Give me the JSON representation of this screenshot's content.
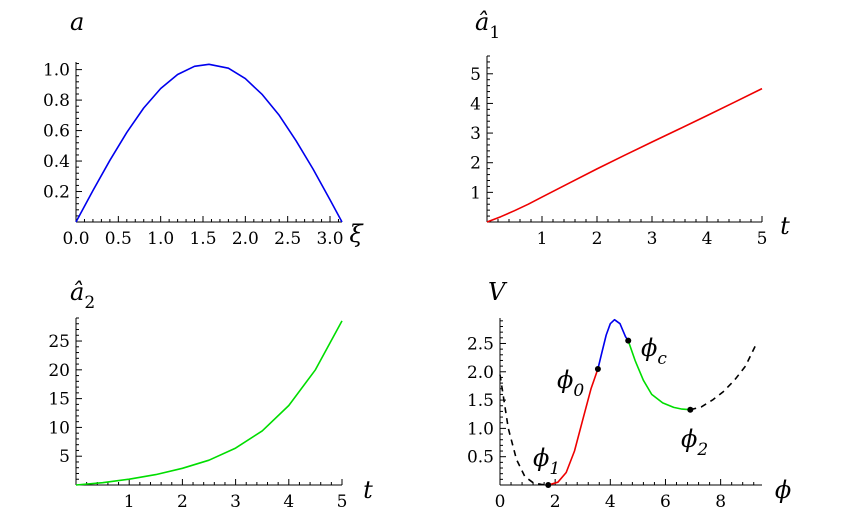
{
  "chart_data": [
    {
      "type": "line",
      "ylabel": "a",
      "xlabel": "ξ",
      "xlim": [
        0,
        3.14159
      ],
      "ylim": [
        0,
        1.05
      ],
      "xticks": [
        "0.0",
        "0.5",
        "1.0",
        "1.5",
        "2.0",
        "2.5",
        "3.0"
      ],
      "yticks": [
        "0.2",
        "0.4",
        "0.6",
        "0.8",
        "1.0"
      ],
      "series": [
        {
          "color": "#0000ee",
          "x": [
            0,
            0.2,
            0.4,
            0.6,
            0.8,
            1.0,
            1.2,
            1.4,
            1.5708,
            1.8,
            2.0,
            2.2,
            2.4,
            2.6,
            2.8,
            3.0,
            3.14159
          ],
          "y": [
            0,
            0.206,
            0.405,
            0.588,
            0.748,
            0.876,
            0.968,
            1.022,
            1.035,
            1.009,
            0.941,
            0.836,
            0.7,
            0.533,
            0.347,
            0.146,
            0
          ]
        }
      ]
    },
    {
      "type": "line",
      "ylabel": "â",
      "ylabel_sub": "1",
      "xlabel": "t",
      "xlim": [
        0,
        5
      ],
      "ylim": [
        0,
        5.6
      ],
      "xticks": [
        "1",
        "2",
        "3",
        "4",
        "5"
      ],
      "yticks": [
        "1",
        "2",
        "3",
        "4",
        "5"
      ],
      "series": [
        {
          "color": "#ee0000",
          "x": [
            0,
            0.25,
            0.5,
            0.75,
            1.0,
            1.5,
            2.0,
            2.5,
            3.0,
            3.5,
            4.0,
            4.5,
            5.0
          ],
          "y": [
            0,
            0.18,
            0.38,
            0.6,
            0.84,
            1.32,
            1.79,
            2.25,
            2.7,
            3.14,
            3.59,
            4.04,
            4.5
          ]
        }
      ]
    },
    {
      "type": "line",
      "ylabel": "â",
      "ylabel_sub": "2",
      "xlabel": "t",
      "xlim": [
        0,
        5
      ],
      "ylim": [
        0,
        29
      ],
      "xticks": [
        "1",
        "2",
        "3",
        "4",
        "5"
      ],
      "yticks": [
        "5",
        "10",
        "15",
        "20",
        "25"
      ],
      "series": [
        {
          "color": "#00dd00",
          "x": [
            0,
            0.5,
            1.0,
            1.5,
            2.0,
            2.5,
            3.0,
            3.5,
            4.0,
            4.5,
            5.0
          ],
          "y": [
            0,
            0.4,
            1.0,
            1.8,
            2.9,
            4.3,
            6.4,
            9.4,
            13.8,
            20.0,
            28.5
          ]
        }
      ]
    },
    {
      "type": "line",
      "ylabel": "V",
      "xlabel": "ϕ",
      "xlim": [
        0,
        9.5
      ],
      "ylim": [
        0,
        2.95
      ],
      "xticks": [
        "0",
        "2",
        "4",
        "6",
        "8"
      ],
      "yticks": [
        "0.5",
        "1.0",
        "1.5",
        "2.0",
        "2.5"
      ],
      "series": [
        {
          "color": "#000000",
          "dash": true,
          "x": [
            0,
            0.3,
            0.6,
            0.9,
            1.2,
            1.5,
            1.75
          ],
          "y": [
            1.95,
            1.0,
            0.45,
            0.15,
            0.04,
            0.01,
            0
          ]
        },
        {
          "color": "#ee0000",
          "x": [
            1.75,
            2.1,
            2.4,
            2.7,
            3.0,
            3.3,
            3.55
          ],
          "y": [
            0,
            0.05,
            0.22,
            0.6,
            1.15,
            1.7,
            2.05
          ]
        },
        {
          "color": "#0000ee",
          "x": [
            3.55,
            3.7,
            3.85,
            4.0,
            4.15,
            4.35,
            4.55,
            4.65
          ],
          "y": [
            2.05,
            2.35,
            2.65,
            2.85,
            2.92,
            2.85,
            2.62,
            2.55
          ]
        },
        {
          "color": "#00dd00",
          "x": [
            4.65,
            4.9,
            5.2,
            5.5,
            5.9,
            6.3,
            6.6,
            6.9
          ],
          "y": [
            2.55,
            2.2,
            1.85,
            1.6,
            1.45,
            1.37,
            1.34,
            1.33
          ]
        },
        {
          "color": "#000000",
          "dash": true,
          "x": [
            6.9,
            7.3,
            7.7,
            8.1,
            8.5,
            8.9,
            9.3
          ],
          "y": [
            1.33,
            1.38,
            1.5,
            1.65,
            1.85,
            2.1,
            2.5
          ]
        }
      ],
      "points": [
        {
          "label": "ϕ",
          "sub": "1",
          "x": 1.75,
          "y": 0
        },
        {
          "label": "ϕ",
          "sub": "0",
          "x": 3.55,
          "y": 2.05
        },
        {
          "label": "ϕ",
          "sub": "c",
          "x": 4.65,
          "y": 2.55
        },
        {
          "label": "ϕ",
          "sub": "2",
          "x": 6.9,
          "y": 1.33
        }
      ]
    }
  ]
}
